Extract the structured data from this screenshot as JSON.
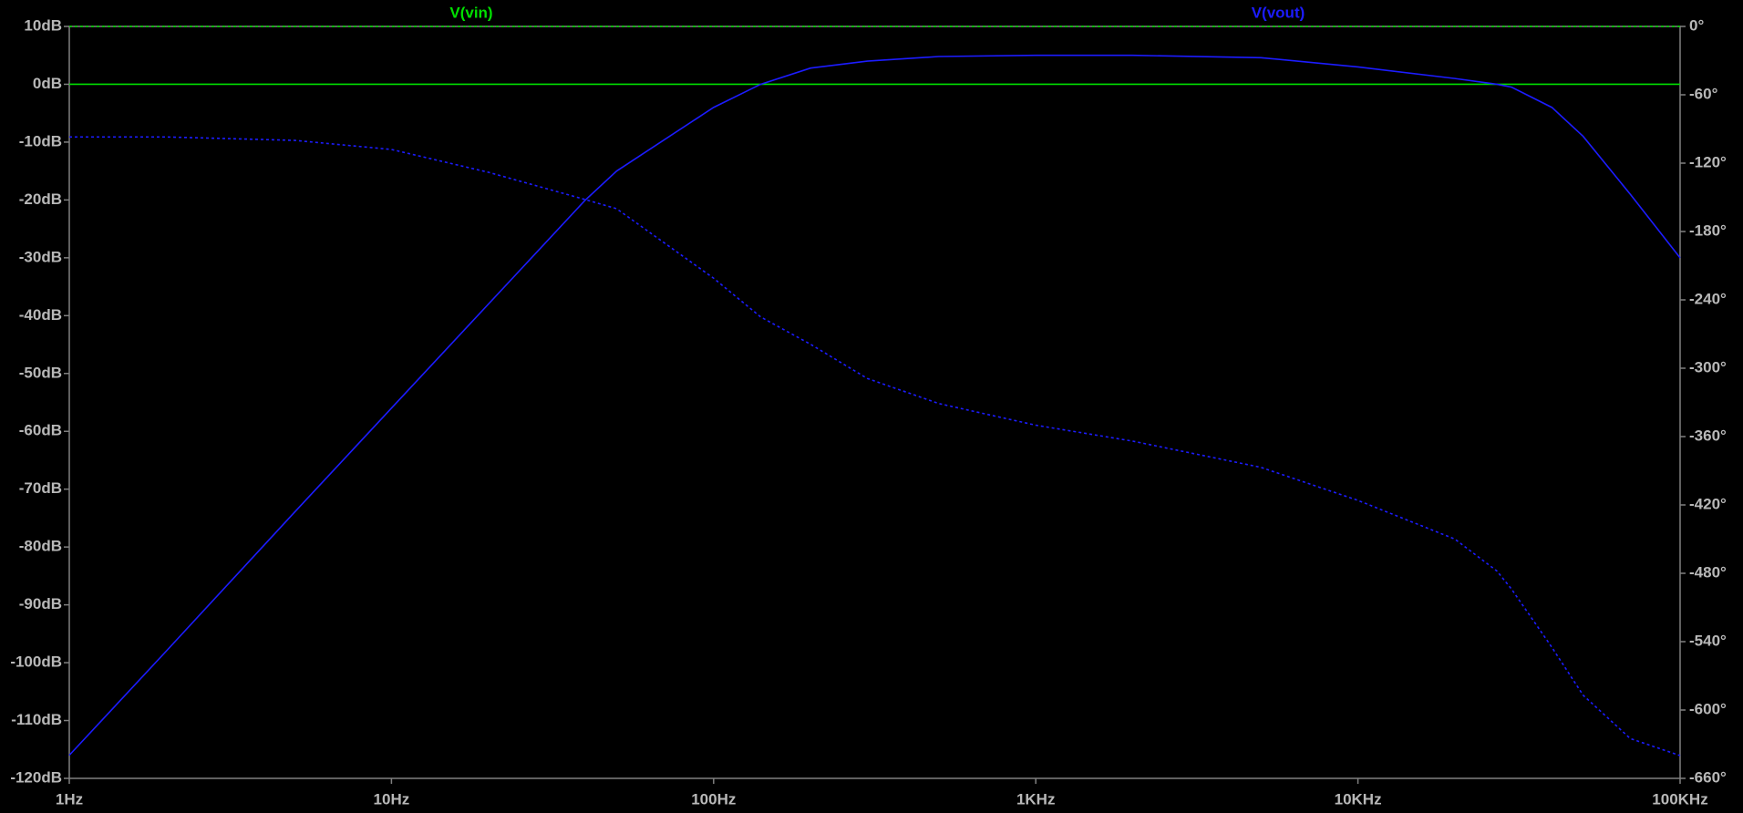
{
  "chart_data": {
    "type": "line",
    "log_x": true,
    "x": [
      1,
      2,
      5,
      10,
      20,
      40,
      50,
      100,
      140,
      200,
      300,
      500,
      1000,
      2000,
      5000,
      10000,
      20000,
      27000,
      30000,
      40000,
      50000,
      70000,
      100000
    ],
    "xlim": [
      1,
      100000
    ],
    "xticks": [
      {
        "value": 1,
        "label": "1Hz"
      },
      {
        "value": 10,
        "label": "10Hz"
      },
      {
        "value": 100,
        "label": "100Hz"
      },
      {
        "value": 1000,
        "label": "1KHz"
      },
      {
        "value": 10000,
        "label": "10KHz"
      },
      {
        "value": 100000,
        "label": "100KHz"
      }
    ],
    "ylim": [
      -120,
      10
    ],
    "yticks": [
      {
        "value": 10,
        "label": "10dB"
      },
      {
        "value": 0,
        "label": "0dB"
      },
      {
        "value": -10,
        "label": "-10dB"
      },
      {
        "value": -20,
        "label": "-20dB"
      },
      {
        "value": -30,
        "label": "-30dB"
      },
      {
        "value": -40,
        "label": "-40dB"
      },
      {
        "value": -50,
        "label": "-50dB"
      },
      {
        "value": -60,
        "label": "-60dB"
      },
      {
        "value": -70,
        "label": "-70dB"
      },
      {
        "value": -80,
        "label": "-80dB"
      },
      {
        "value": -90,
        "label": "-90dB"
      },
      {
        "value": -100,
        "label": "-100dB"
      },
      {
        "value": -110,
        "label": "-110dB"
      },
      {
        "value": -120,
        "label": "-120dB"
      }
    ],
    "y2lim": [
      -660,
      0
    ],
    "y2ticks": [
      {
        "value": 0,
        "label": "0°"
      },
      {
        "value": -60,
        "label": "-60°"
      },
      {
        "value": -120,
        "label": "-120°"
      },
      {
        "value": -180,
        "label": "-180°"
      },
      {
        "value": -240,
        "label": "-240°"
      },
      {
        "value": -300,
        "label": "-300°"
      },
      {
        "value": -360,
        "label": "-360°"
      },
      {
        "value": -420,
        "label": "-420°"
      },
      {
        "value": -480,
        "label": "-480°"
      },
      {
        "value": -540,
        "label": "-540°"
      },
      {
        "value": -600,
        "label": "-600°"
      },
      {
        "value": -660,
        "label": "-660°"
      }
    ],
    "series": [
      {
        "name": "V(vin)",
        "color": "#00e000",
        "values": [
          0,
          0,
          0,
          0,
          0,
          0,
          0,
          0,
          0,
          0,
          0,
          0,
          0,
          0,
          0,
          0,
          0,
          0,
          0,
          0,
          0,
          0,
          0
        ],
        "phase_values": [
          0,
          0,
          0,
          0,
          0,
          0,
          0,
          0,
          0,
          0,
          0,
          0,
          0,
          0,
          0,
          0,
          0,
          0,
          0,
          0,
          0,
          0,
          0
        ]
      },
      {
        "name": "V(vout)",
        "color": "#1c1cff",
        "values": [
          -116,
          -98,
          -74,
          -56,
          -38,
          -20,
          -15,
          -4,
          0,
          2.8,
          4,
          4.8,
          5,
          5,
          4.6,
          3,
          1,
          0,
          -0.5,
          -4,
          -9,
          -19,
          -30
        ],
        "phase_values": [
          -97,
          -97,
          -100,
          -108,
          -128,
          -152,
          -160,
          -221,
          -255,
          -279,
          -309,
          -331,
          -350,
          -364,
          -387,
          -416,
          -450,
          -478,
          -494,
          -545,
          -587,
          -625,
          -640
        ]
      }
    ]
  }
}
